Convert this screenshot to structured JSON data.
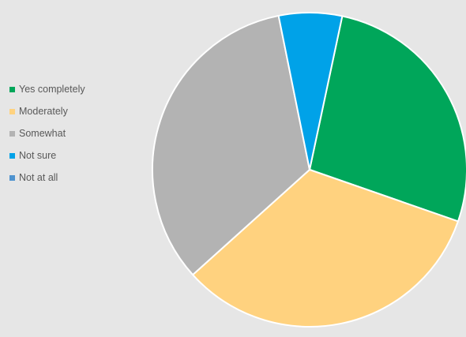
{
  "chart_data": {
    "type": "pie",
    "title": "",
    "start_angle_deg": 12,
    "direction": "clockwise",
    "legend_position": "left",
    "slices": [
      {
        "label": "Yes completely",
        "value": 27,
        "color": "#00a65a"
      },
      {
        "label": "Moderately",
        "value": 33,
        "color": "#ffd27f"
      },
      {
        "label": "Somewhat",
        "value": 33.5,
        "color": "#b3b3b3"
      },
      {
        "label": "Not sure",
        "value": 6.5,
        "color": "#00a2e8"
      },
      {
        "label": "Not at all",
        "value": 0,
        "color": "#4f93cf"
      }
    ]
  }
}
